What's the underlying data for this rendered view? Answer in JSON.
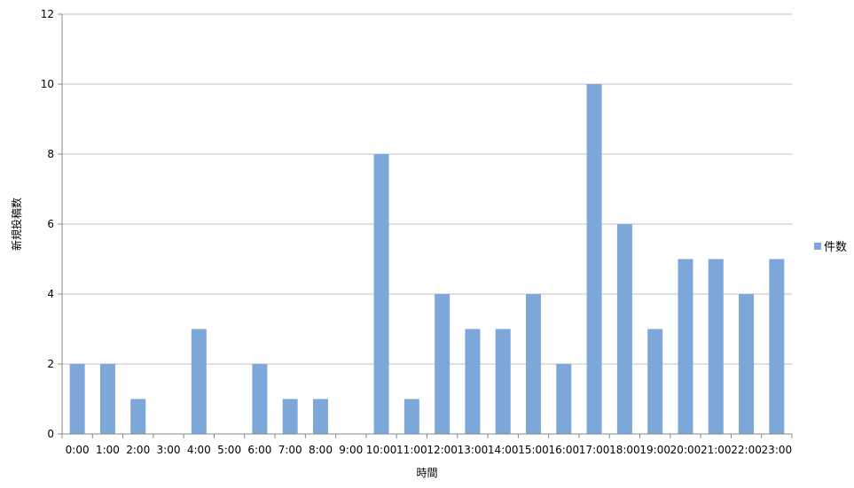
{
  "chart_data": {
    "type": "bar",
    "categories": [
      "0:00",
      "1:00",
      "2:00",
      "3:00",
      "4:00",
      "5:00",
      "6:00",
      "7:00",
      "8:00",
      "9:00",
      "10:00",
      "11:00",
      "12:00",
      "13:00",
      "14:00",
      "15:00",
      "16:00",
      "17:00",
      "18:00",
      "19:00",
      "20:00",
      "21:00",
      "22:00",
      "23:00"
    ],
    "series": [
      {
        "name": "件数",
        "values": [
          2,
          2,
          1,
          0,
          3,
          0,
          2,
          1,
          1,
          0,
          8,
          1,
          4,
          3,
          3,
          4,
          2,
          10,
          6,
          3,
          5,
          5,
          4,
          5
        ],
        "color": "#7ea7d9"
      }
    ],
    "title": "",
    "xlabel": "時間",
    "ylabel": "新規投稿数",
    "ylim": [
      0,
      12
    ],
    "yticks": [
      0,
      2,
      4,
      6,
      8,
      10,
      12
    ],
    "grid": true,
    "legend": "right"
  }
}
